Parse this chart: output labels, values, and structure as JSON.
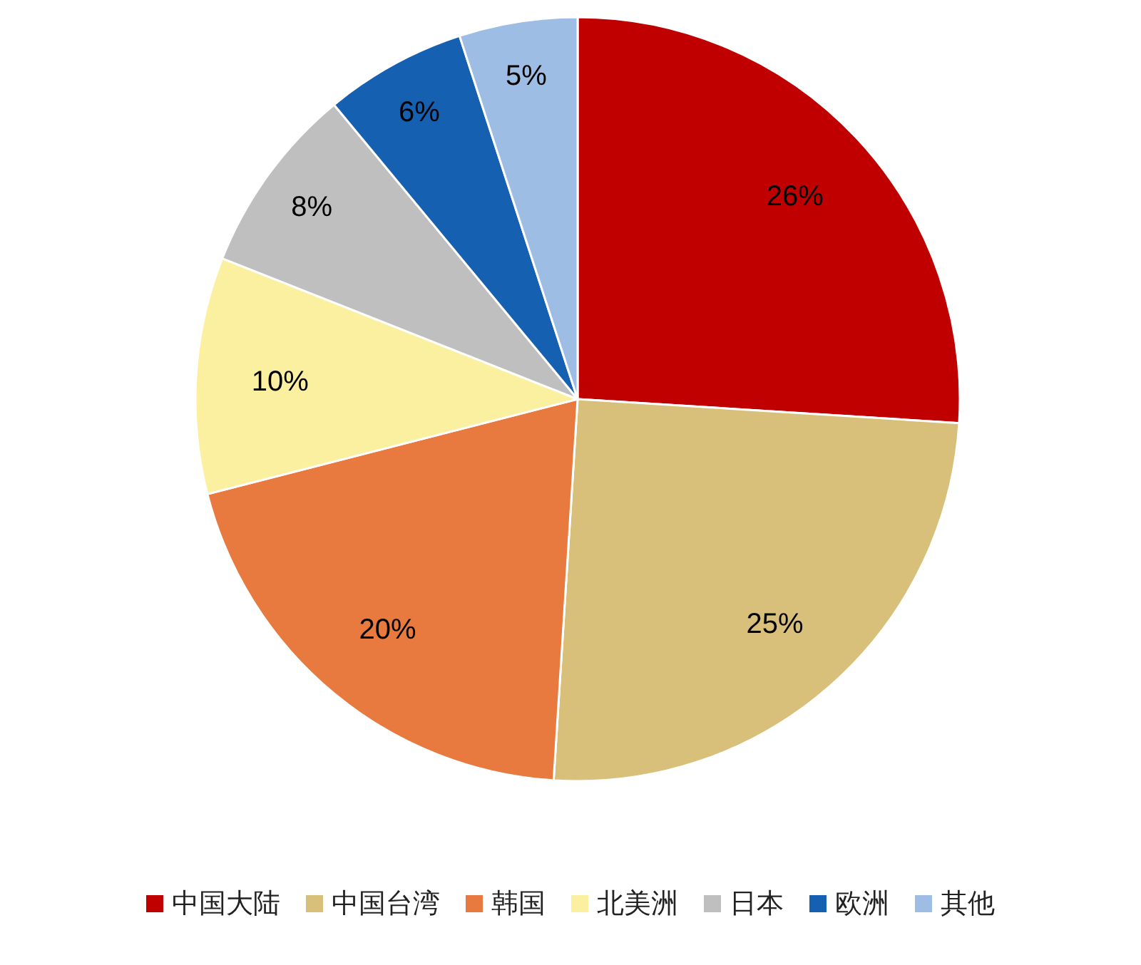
{
  "chart_data": {
    "type": "pie",
    "categories": [
      "中国大陆",
      "中国台湾",
      "韩国",
      "北美洲",
      "日本",
      "欧洲",
      "其他"
    ],
    "values": [
      26,
      25,
      20,
      10,
      8,
      6,
      5
    ],
    "colors": [
      "#c00000",
      "#d9c07a",
      "#e8793f",
      "#faf0a0",
      "#bfbfbf",
      "#1560b0",
      "#9dbde4"
    ],
    "value_labels": [
      "26%",
      "25%",
      "20%",
      "10%",
      "8%",
      "6%",
      "5%"
    ],
    "legend": "bottom"
  }
}
